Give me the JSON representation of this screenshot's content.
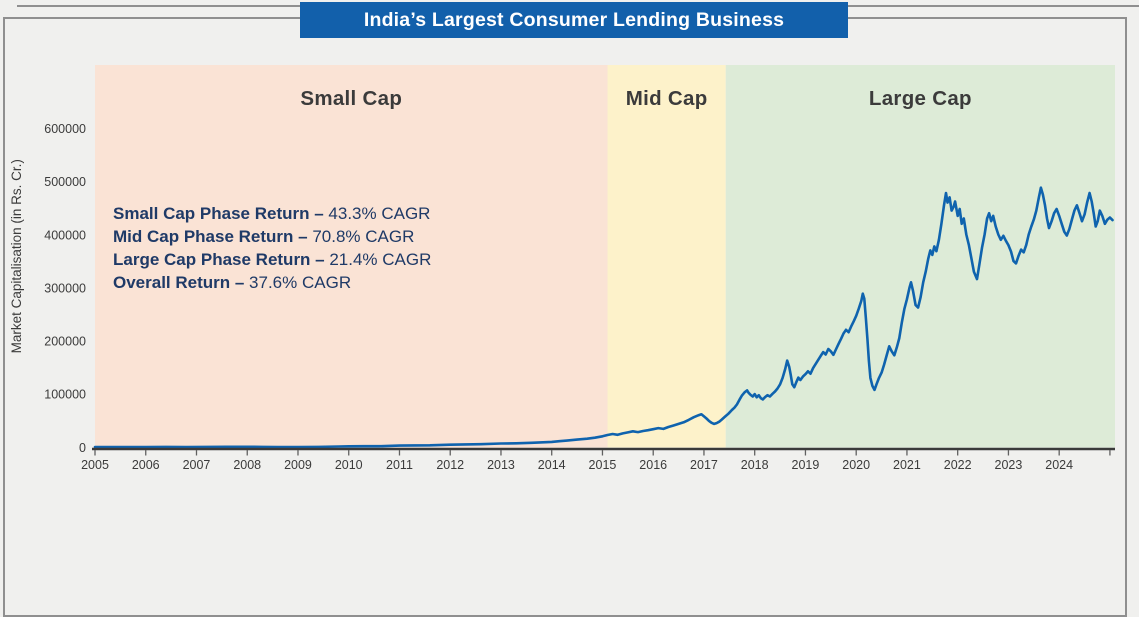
{
  "banner": {
    "title": "India’s Largest Consumer Lending Business"
  },
  "annotations": {
    "lines": [
      {
        "label": "Small Cap Phase Return –",
        "value": " 43.3% CAGR"
      },
      {
        "label": "Mid Cap Phase Return –",
        "value": " 70.8% CAGR"
      },
      {
        "label": "Large Cap Phase Return –",
        "value": " 21.4% CAGR"
      },
      {
        "label": "Overall Return –",
        "value": " 37.6% CAGR"
      }
    ]
  },
  "colors": {
    "page_bg": "#f0f0ee",
    "banner_bg": "#1260ab",
    "banner_text": "#ffffff",
    "annotation_text": "#1f3a67",
    "frame": "#8f8f8f",
    "axis": "#3a3a3a",
    "tick": "#606060",
    "label_text": "#3b3b3b"
  },
  "chart_data": {
    "type": "line",
    "title": "India’s Largest Consumer Lending Business",
    "xlabel": "",
    "ylabel": "Market Capitalisation (in Rs. Cr.)",
    "xlim": [
      2005,
      2025.1
    ],
    "ylim": [
      0,
      720000
    ],
    "x_ticks": [
      2005,
      2006,
      2007,
      2008,
      2009,
      2010,
      2011,
      2012,
      2013,
      2014,
      2015,
      2016,
      2017,
      2018,
      2019,
      2020,
      2021,
      2022,
      2023,
      2024
    ],
    "edge_ticks": [
      2025
    ],
    "y_ticks": [
      0,
      100000,
      200000,
      300000,
      400000,
      500000,
      600000
    ],
    "grid": false,
    "legend": false,
    "phases": [
      {
        "label": "Small Cap",
        "start": 2005,
        "end": 2015.1,
        "color": "#fae3d5"
      },
      {
        "label": "Mid Cap",
        "start": 2015.1,
        "end": 2017.43,
        "color": "#fdf2ca"
      },
      {
        "label": "Large Cap",
        "start": 2017.43,
        "end": 2025.1,
        "color": "#ddebd7"
      }
    ],
    "series": [
      {
        "name": "Market Capitalisation (in Rs. Cr.)",
        "color": "#0f63ae",
        "points": [
          [
            2005.0,
            700
          ],
          [
            2005.3,
            800
          ],
          [
            2005.6,
            750
          ],
          [
            2006.0,
            950
          ],
          [
            2006.4,
            1050
          ],
          [
            2006.8,
            1000
          ],
          [
            2007.2,
            1200
          ],
          [
            2007.6,
            1350
          ],
          [
            2008.0,
            1400
          ],
          [
            2008.3,
            1150
          ],
          [
            2008.6,
            950
          ],
          [
            2009.0,
            900
          ],
          [
            2009.4,
            1200
          ],
          [
            2009.8,
            1800
          ],
          [
            2010.0,
            2200
          ],
          [
            2010.3,
            2500
          ],
          [
            2010.6,
            2400
          ],
          [
            2011.0,
            3600
          ],
          [
            2011.3,
            3900
          ],
          [
            2011.6,
            4100
          ],
          [
            2012.0,
            5300
          ],
          [
            2012.3,
            5900
          ],
          [
            2012.6,
            6300
          ],
          [
            2013.0,
            7600
          ],
          [
            2013.3,
            8000
          ],
          [
            2013.6,
            8800
          ],
          [
            2014.0,
            10500
          ],
          [
            2014.15,
            11800
          ],
          [
            2014.3,
            13000
          ],
          [
            2014.5,
            14800
          ],
          [
            2014.7,
            16500
          ],
          [
            2014.85,
            18500
          ],
          [
            2015.0,
            21000
          ],
          [
            2015.1,
            23500
          ],
          [
            2015.2,
            25500
          ],
          [
            2015.3,
            24000
          ],
          [
            2015.4,
            26500
          ],
          [
            2015.5,
            28500
          ],
          [
            2015.6,
            30500
          ],
          [
            2015.7,
            29000
          ],
          [
            2015.8,
            31000
          ],
          [
            2015.9,
            32500
          ],
          [
            2016.0,
            34500
          ],
          [
            2016.1,
            36500
          ],
          [
            2016.2,
            35000
          ],
          [
            2016.3,
            38500
          ],
          [
            2016.4,
            41500
          ],
          [
            2016.5,
            44500
          ],
          [
            2016.6,
            47500
          ],
          [
            2016.7,
            52000
          ],
          [
            2016.8,
            57000
          ],
          [
            2016.9,
            61000
          ],
          [
            2016.95,
            62500
          ],
          [
            2017.0,
            58500
          ],
          [
            2017.05,
            54500
          ],
          [
            2017.1,
            50000
          ],
          [
            2017.15,
            46500
          ],
          [
            2017.2,
            44500
          ],
          [
            2017.25,
            46000
          ],
          [
            2017.3,
            48500
          ],
          [
            2017.35,
            52500
          ],
          [
            2017.42,
            58500
          ],
          [
            2017.48,
            63500
          ],
          [
            2017.55,
            70500
          ],
          [
            2017.6,
            75000
          ],
          [
            2017.65,
            81000
          ],
          [
            2017.7,
            90000
          ],
          [
            2017.75,
            98000
          ],
          [
            2017.8,
            104000
          ],
          [
            2017.85,
            107500
          ],
          [
            2017.88,
            103000
          ],
          [
            2017.92,
            99000
          ],
          [
            2017.96,
            96000
          ],
          [
            2018.0,
            100500
          ],
          [
            2018.04,
            94500
          ],
          [
            2018.08,
            98500
          ],
          [
            2018.12,
            93000
          ],
          [
            2018.16,
            90500
          ],
          [
            2018.2,
            94500
          ],
          [
            2018.25,
            98500
          ],
          [
            2018.3,
            96000
          ],
          [
            2018.35,
            101000
          ],
          [
            2018.4,
            105500
          ],
          [
            2018.45,
            111000
          ],
          [
            2018.5,
            119000
          ],
          [
            2018.55,
            131000
          ],
          [
            2018.6,
            147000
          ],
          [
            2018.64,
            163500
          ],
          [
            2018.68,
            152000
          ],
          [
            2018.71,
            137000
          ],
          [
            2018.74,
            119000
          ],
          [
            2018.78,
            113500
          ],
          [
            2018.82,
            123000
          ],
          [
            2018.86,
            131500
          ],
          [
            2018.9,
            127000
          ],
          [
            2018.95,
            133500
          ],
          [
            2019.0,
            138000
          ],
          [
            2019.05,
            143500
          ],
          [
            2019.1,
            139000
          ],
          [
            2019.15,
            149500
          ],
          [
            2019.2,
            157000
          ],
          [
            2019.25,
            164500
          ],
          [
            2019.3,
            172500
          ],
          [
            2019.35,
            179500
          ],
          [
            2019.4,
            175000
          ],
          [
            2019.45,
            185500
          ],
          [
            2019.5,
            181000
          ],
          [
            2019.55,
            174500
          ],
          [
            2019.6,
            184500
          ],
          [
            2019.65,
            194500
          ],
          [
            2019.7,
            204500
          ],
          [
            2019.75,
            214500
          ],
          [
            2019.8,
            221500
          ],
          [
            2019.85,
            217000
          ],
          [
            2019.9,
            227500
          ],
          [
            2019.95,
            237500
          ],
          [
            2020.0,
            248000
          ],
          [
            2020.05,
            261000
          ],
          [
            2020.1,
            276000
          ],
          [
            2020.13,
            289500
          ],
          [
            2020.16,
            280000
          ],
          [
            2020.19,
            245000
          ],
          [
            2020.22,
            205000
          ],
          [
            2020.25,
            163000
          ],
          [
            2020.28,
            131000
          ],
          [
            2020.32,
            116000
          ],
          [
            2020.36,
            108500
          ],
          [
            2020.4,
            119000
          ],
          [
            2020.45,
            131000
          ],
          [
            2020.5,
            141000
          ],
          [
            2020.55,
            156000
          ],
          [
            2020.6,
            173000
          ],
          [
            2020.65,
            190500
          ],
          [
            2020.7,
            181000
          ],
          [
            2020.75,
            173500
          ],
          [
            2020.8,
            188500
          ],
          [
            2020.85,
            206000
          ],
          [
            2020.9,
            236000
          ],
          [
            2020.95,
            261000
          ],
          [
            2021.0,
            279000
          ],
          [
            2021.05,
            301000
          ],
          [
            2021.08,
            311000
          ],
          [
            2021.12,
            295000
          ],
          [
            2021.17,
            268000
          ],
          [
            2021.22,
            263500
          ],
          [
            2021.27,
            283000
          ],
          [
            2021.32,
            311000
          ],
          [
            2021.37,
            331000
          ],
          [
            2021.42,
            356000
          ],
          [
            2021.46,
            371000
          ],
          [
            2021.5,
            362500
          ],
          [
            2021.54,
            378500
          ],
          [
            2021.58,
            369500
          ],
          [
            2021.63,
            391000
          ],
          [
            2021.68,
            421000
          ],
          [
            2021.73,
            456000
          ],
          [
            2021.77,
            479000
          ],
          [
            2021.8,
            461000
          ],
          [
            2021.84,
            471000
          ],
          [
            2021.88,
            446000
          ],
          [
            2021.92,
            453000
          ],
          [
            2021.95,
            463000
          ],
          [
            2022.0,
            436000
          ],
          [
            2022.04,
            449000
          ],
          [
            2022.08,
            421000
          ],
          [
            2022.12,
            431000
          ],
          [
            2022.17,
            401000
          ],
          [
            2022.22,
            381000
          ],
          [
            2022.27,
            356000
          ],
          [
            2022.32,
            331000
          ],
          [
            2022.38,
            317000
          ],
          [
            2022.43,
            346000
          ],
          [
            2022.48,
            376000
          ],
          [
            2022.53,
            401000
          ],
          [
            2022.58,
            431000
          ],
          [
            2022.62,
            441000
          ],
          [
            2022.66,
            426000
          ],
          [
            2022.7,
            436000
          ],
          [
            2022.75,
            416000
          ],
          [
            2022.8,
            401000
          ],
          [
            2022.85,
            391000
          ],
          [
            2022.9,
            398500
          ],
          [
            2022.95,
            389000
          ],
          [
            2023.0,
            381000
          ],
          [
            2023.05,
            369000
          ],
          [
            2023.1,
            351000
          ],
          [
            2023.15,
            346500
          ],
          [
            2023.2,
            361000
          ],
          [
            2023.25,
            372500
          ],
          [
            2023.3,
            367500
          ],
          [
            2023.35,
            381000
          ],
          [
            2023.4,
            401000
          ],
          [
            2023.45,
            416000
          ],
          [
            2023.5,
            429000
          ],
          [
            2023.55,
            446000
          ],
          [
            2023.6,
            471000
          ],
          [
            2023.64,
            489000
          ],
          [
            2023.68,
            476000
          ],
          [
            2023.72,
            456000
          ],
          [
            2023.76,
            431000
          ],
          [
            2023.8,
            413000
          ],
          [
            2023.85,
            426000
          ],
          [
            2023.9,
            441000
          ],
          [
            2023.95,
            449000
          ],
          [
            2024.0,
            436000
          ],
          [
            2024.05,
            421000
          ],
          [
            2024.1,
            406000
          ],
          [
            2024.15,
            399000
          ],
          [
            2024.2,
            411000
          ],
          [
            2024.25,
            429000
          ],
          [
            2024.3,
            446000
          ],
          [
            2024.35,
            456000
          ],
          [
            2024.4,
            441000
          ],
          [
            2024.45,
            426000
          ],
          [
            2024.5,
            439000
          ],
          [
            2024.55,
            461000
          ],
          [
            2024.6,
            479000
          ],
          [
            2024.64,
            463000
          ],
          [
            2024.68,
            441000
          ],
          [
            2024.72,
            416000
          ],
          [
            2024.76,
            426000
          ],
          [
            2024.8,
            446000
          ],
          [
            2024.85,
            436000
          ],
          [
            2024.9,
            421000
          ],
          [
            2024.95,
            429000
          ],
          [
            2025.0,
            433000
          ],
          [
            2025.05,
            428000
          ]
        ]
      }
    ]
  }
}
